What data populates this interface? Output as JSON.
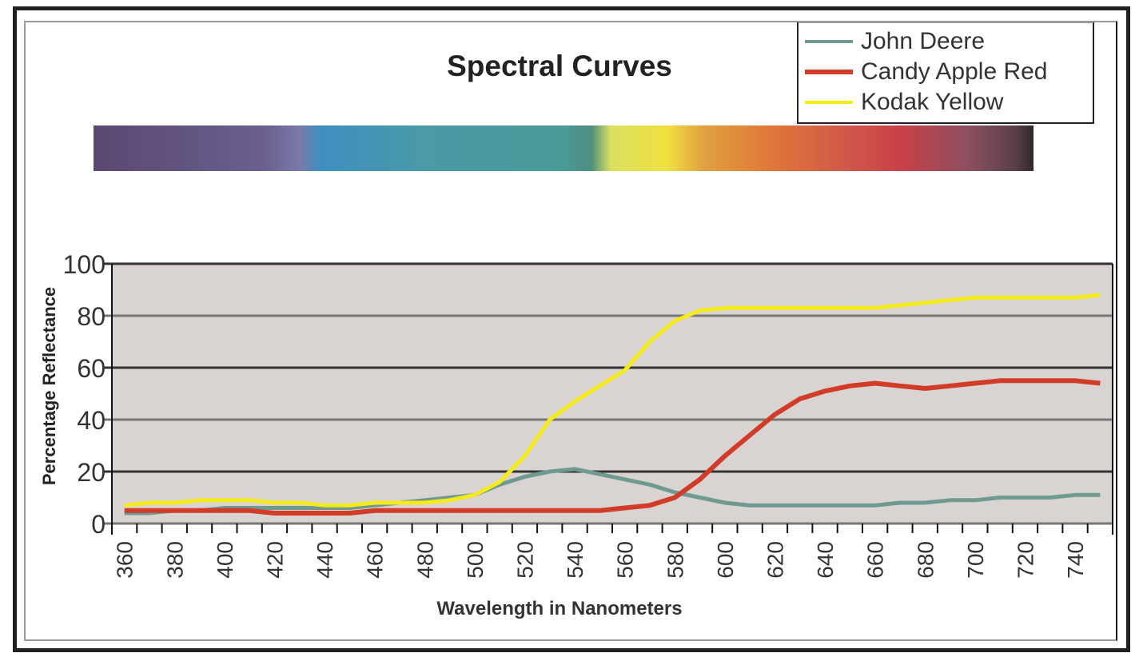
{
  "chart_data": {
    "type": "line",
    "title": "Spectral Curves",
    "xlabel": "Wavelength in Nanometers",
    "ylabel": "Percentage Reflectance",
    "ylim": [
      0,
      100
    ],
    "yticks": [
      0,
      20,
      40,
      60,
      80,
      100
    ],
    "xticks": [
      360,
      380,
      400,
      420,
      440,
      460,
      480,
      500,
      520,
      540,
      560,
      580,
      600,
      620,
      640,
      660,
      680,
      700,
      720,
      740
    ],
    "x": [
      360,
      370,
      380,
      390,
      400,
      410,
      420,
      430,
      440,
      450,
      460,
      470,
      480,
      490,
      500,
      510,
      520,
      530,
      540,
      550,
      560,
      570,
      580,
      590,
      600,
      610,
      620,
      630,
      640,
      650,
      660,
      670,
      680,
      690,
      700,
      710,
      720,
      730,
      740,
      750
    ],
    "grid": true,
    "legend_position": "top-right",
    "series": [
      {
        "name": "John Deere",
        "color": "#6f9a92",
        "values": [
          4,
          4,
          5,
          5,
          6,
          6,
          6,
          6,
          6,
          6,
          7,
          8,
          9,
          10,
          11,
          15,
          18,
          20,
          21,
          19,
          17,
          15,
          12,
          10,
          8,
          7,
          7,
          7,
          7,
          7,
          7,
          8,
          8,
          9,
          9,
          10,
          10,
          10,
          11,
          11
        ]
      },
      {
        "name": "Candy Apple Red",
        "color": "#d03c28",
        "values": [
          5,
          5,
          5,
          5,
          5,
          5,
          4,
          4,
          4,
          4,
          5,
          5,
          5,
          5,
          5,
          5,
          5,
          5,
          5,
          5,
          6,
          7,
          10,
          17,
          26,
          34,
          42,
          48,
          51,
          53,
          54,
          53,
          52,
          53,
          54,
          55,
          55,
          55,
          55,
          54
        ]
      },
      {
        "name": "Kodak Yellow",
        "color": "#f5ea1a",
        "values": [
          7,
          8,
          8,
          9,
          9,
          9,
          8,
          8,
          7,
          7,
          8,
          8,
          8,
          9,
          11,
          16,
          26,
          40,
          47,
          53,
          59,
          70,
          78,
          82,
          83,
          83,
          83,
          83,
          83,
          83,
          83,
          84,
          85,
          86,
          87,
          87,
          87,
          87,
          87,
          88
        ]
      }
    ]
  }
}
